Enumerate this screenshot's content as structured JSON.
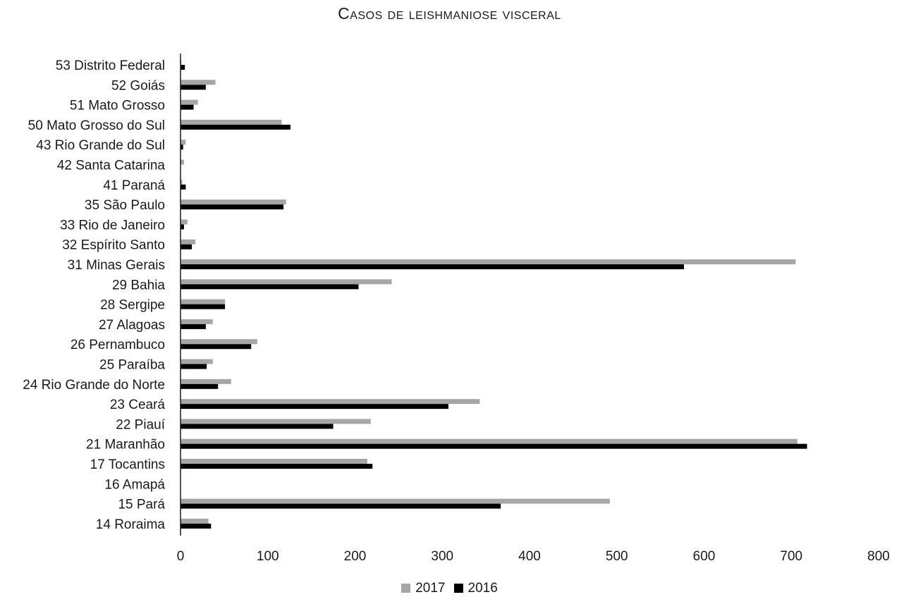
{
  "chart_data": {
    "type": "bar",
    "orientation": "horizontal",
    "title": "Casos de leishmaniose visceral",
    "xlabel": "",
    "ylabel": "",
    "xlim": [
      0,
      800
    ],
    "x_ticks": [
      "0",
      "100",
      "200",
      "300",
      "400",
      "500",
      "600",
      "700",
      "800"
    ],
    "grid": false,
    "legend_position": "bottom",
    "categories": [
      "53 Distrito Federal",
      "52 Goiás",
      "51 Mato Grosso",
      "50 Mato Grosso do Sul",
      "43 Rio Grande do Sul",
      "42 Santa Catarina",
      "41 Paraná",
      "35 São Paulo",
      "33 Rio de Janeiro",
      "32 Espírito Santo",
      "31 Minas Gerais",
      "29 Bahia",
      "28 Sergipe",
      "27 Alagoas",
      "26 Pernambuco",
      "25 Paraíba",
      "24 Rio Grande do Norte",
      "23 Ceará",
      "22 Piauí",
      "21 Maranhão",
      "17 Tocantins",
      "16 Amapá",
      "15 Pará",
      "14 Roraima"
    ],
    "series": [
      {
        "name": "2017",
        "color": "#a6a6a6",
        "values": [
          1,
          40,
          20,
          116,
          6,
          4,
          2,
          121,
          8,
          17,
          705,
          242,
          51,
          37,
          88,
          37,
          58,
          343,
          218,
          707,
          214,
          0,
          492,
          32
        ]
      },
      {
        "name": "2016",
        "color": "#000000",
        "values": [
          5,
          29,
          15,
          126,
          3,
          0,
          6,
          118,
          4,
          13,
          577,
          204,
          51,
          29,
          81,
          30,
          43,
          307,
          175,
          718,
          220,
          0,
          367,
          35
        ]
      }
    ]
  }
}
